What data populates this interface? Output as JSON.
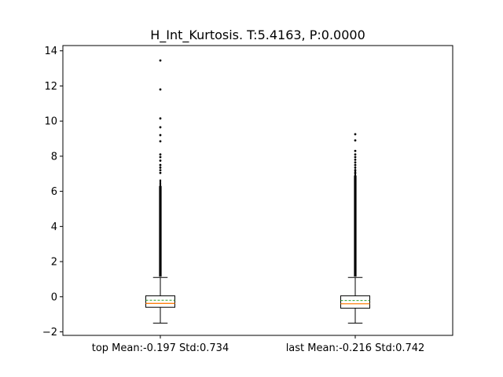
{
  "chart_data": {
    "type": "box",
    "title": "H_Int_Kurtosis. T:5.4163, P:0.0000",
    "xlabel": "",
    "ylabel": "",
    "ylim": [
      -2.2,
      14.3
    ],
    "yticks": [
      -2,
      0,
      2,
      4,
      6,
      8,
      10,
      12,
      14
    ],
    "categories": [
      "top Mean:-0.197 Std:0.734",
      "last Mean:-0.216 Std:0.742"
    ],
    "boxes": [
      {
        "q1": -0.6,
        "median": -0.38,
        "mean": -0.197,
        "q3": 0.05,
        "whisker_low": -1.5,
        "whisker_high": 1.1,
        "outliers": [
          13.45,
          11.8,
          10.15,
          9.65,
          9.2,
          8.85,
          8.1,
          7.95,
          7.75,
          7.5,
          7.35,
          7.2,
          7.05
        ]
      },
      {
        "q1": -0.65,
        "median": -0.4,
        "mean": -0.216,
        "q3": 0.05,
        "whisker_low": -1.5,
        "whisker_high": 1.1,
        "outliers": [
          9.25,
          8.9,
          8.3,
          8.1,
          7.95,
          7.8,
          7.65,
          7.5,
          7.35,
          7.2,
          7.05
        ]
      }
    ],
    "dense_outlier_band": [
      {
        "from": 1.15,
        "to": 6.3
      },
      {
        "from": 1.15,
        "to": 6.9
      }
    ],
    "colors": {
      "median": "#ff7f0e",
      "mean": "#2ca02c",
      "box": "#000000",
      "flier": "#000000"
    },
    "mean_style": "dashed-line",
    "grid": false,
    "legend": "none"
  }
}
